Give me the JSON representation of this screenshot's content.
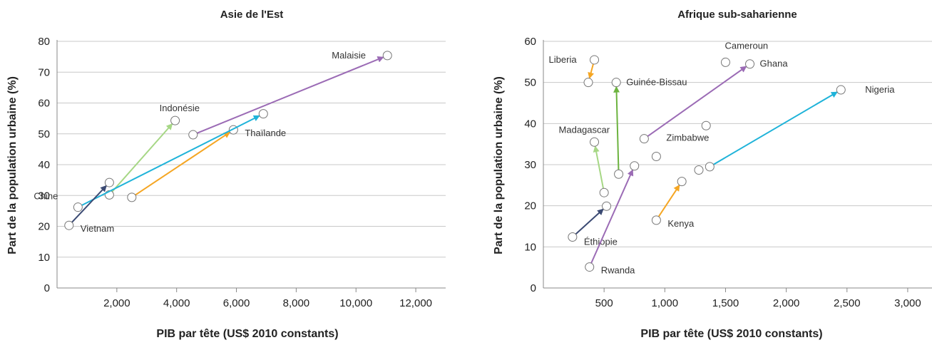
{
  "chart_data": [
    {
      "type": "scatter",
      "title": "Asie de l'Est",
      "xlabel": "PIB par tête (US$ 2010 constants)",
      "ylabel": "Part de la population urbaine (%)",
      "xlim": [
        0,
        13000
      ],
      "ylim": [
        0,
        80
      ],
      "xticks": [
        "2,000",
        "4,000",
        "6,000",
        "8,000",
        "10,000",
        "12,000"
      ],
      "xtick_values": [
        2000,
        4000,
        6000,
        8000,
        10000,
        12000
      ],
      "yticks": [
        "0",
        "10",
        "20",
        "30",
        "40",
        "50",
        "60",
        "70",
        "80"
      ],
      "ytick_values": [
        0,
        10,
        20,
        30,
        40,
        50,
        60,
        70,
        80
      ],
      "grid": "horizontal",
      "series": [
        {
          "name": "Malaisie",
          "color": "#9b6bb5",
          "start": [
            4550,
            49.7
          ],
          "end": [
            11050,
            75.4
          ],
          "label": "end"
        },
        {
          "name": "Indonésie",
          "color": "#a6d785",
          "start": [
            1750,
            30.2
          ],
          "end": [
            3950,
            54.3
          ],
          "label": "end"
        },
        {
          "name": "Thaïlande",
          "color": "#f5a623",
          "start": [
            2500,
            29.4
          ],
          "end": [
            5900,
            51.3
          ],
          "label": "end"
        },
        {
          "name": "Chine",
          "color": "#1fb3d9",
          "start": [
            700,
            26.2
          ],
          "end": [
            6900,
            56.5
          ],
          "label": "start"
        },
        {
          "name": "Vietnam",
          "color": "#3b4a73",
          "start": [
            400,
            20.3
          ],
          "end": [
            1750,
            34.2
          ],
          "label": "start"
        }
      ]
    },
    {
      "type": "scatter",
      "title": "Afrique sub-saharienne",
      "xlabel": "PIB par tête (US$ 2010 constants)",
      "ylabel": "Part de la population urbaine (%)",
      "xlim": [
        0,
        3200
      ],
      "ylim": [
        0,
        60
      ],
      "xticks": [
        "500",
        "1,000",
        "1,500",
        "2,000",
        "2,500",
        "3,000"
      ],
      "xtick_values": [
        500,
        1000,
        1500,
        2000,
        2500,
        3000
      ],
      "yticks": [
        "0",
        "10",
        "20",
        "30",
        "40",
        "50",
        "60"
      ],
      "ytick_values": [
        0,
        10,
        20,
        30,
        40,
        50,
        60
      ],
      "grid": "horizontal",
      "series": [
        {
          "name": "Liberia",
          "color": "#f5a623",
          "start": [
            420,
            55.5
          ],
          "end": [
            370,
            50.0
          ],
          "label": "start"
        },
        {
          "name": "Guinée-Bissau",
          "color": "#6cb33f",
          "start": [
            620,
            27.7
          ],
          "end": [
            600,
            50.0
          ],
          "label": "end"
        },
        {
          "name": "Cameroun",
          "color": "#9b6bb5",
          "start": [
            830,
            36.3
          ],
          "end": [
            1700,
            54.5
          ],
          "label": "none"
        },
        {
          "name": "Nigeria",
          "color": "#1fb3d9",
          "start": [
            1370,
            29.5
          ],
          "end": [
            2450,
            48.2
          ],
          "label": "end"
        },
        {
          "name": "Madagascar",
          "color": "#a6d785",
          "start": [
            500,
            23.2
          ],
          "end": [
            420,
            35.5
          ],
          "label": "end"
        },
        {
          "name": "Kenya",
          "color": "#f5a623",
          "start": [
            930,
            16.5
          ],
          "end": [
            1140,
            25.9
          ],
          "label": "start"
        },
        {
          "name": "Éthiopie",
          "color": "#3b4a73",
          "start": [
            240,
            12.4
          ],
          "end": [
            520,
            19.9
          ],
          "label": "start"
        },
        {
          "name": "Rwanda",
          "color": "#9b6bb5",
          "start": [
            380,
            5.1
          ],
          "end": [
            750,
            29.7
          ],
          "label": "start"
        }
      ],
      "points": [
        {
          "name": "Cameroun",
          "x": 1500,
          "y": 54.9
        },
        {
          "name": "Zimbabwe",
          "x": 930,
          "y": 32.0
        },
        {
          "name": "",
          "x": 1340,
          "y": 39.5
        },
        {
          "name": "",
          "x": 1280,
          "y": 28.7
        }
      ]
    }
  ]
}
